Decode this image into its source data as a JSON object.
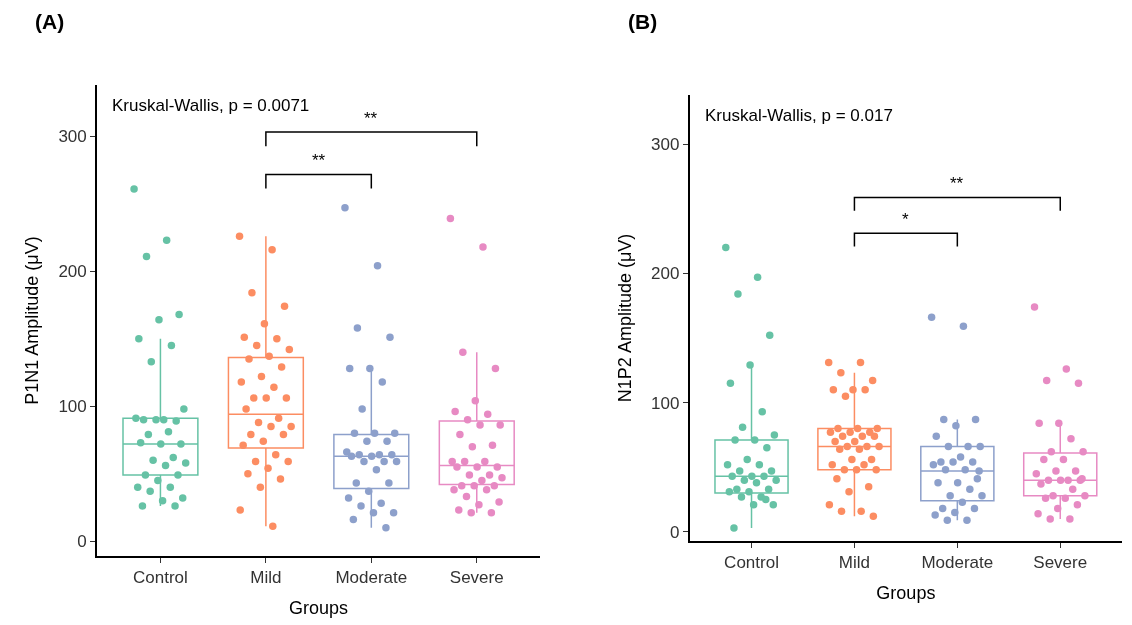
{
  "chart_data": [
    {
      "type": "box",
      "title": "(A)",
      "xlabel": "Groups",
      "ylabel": "P1N1 Amplitude (μV)",
      "categories": [
        "Control",
        "Mild",
        "Moderate",
        "Severe"
      ],
      "colors": [
        "#66c2a5",
        "#fc8d62",
        "#8da0cb",
        "#e78ac3"
      ],
      "ylim": [
        -11,
        338
      ],
      "yticks": [
        0,
        100,
        200,
        300
      ],
      "marker": "circle",
      "annotations": [
        "Kruskal-Wallis, p = 0.0071",
        "**",
        "**"
      ],
      "boxes": [
        {
          "low": 26,
          "q1": 49,
          "median": 72,
          "q3": 91,
          "high": 150
        },
        {
          "low": 11,
          "q1": 69,
          "median": 94,
          "q3": 136,
          "high": 226
        },
        {
          "low": 10,
          "q1": 39,
          "median": 63,
          "q3": 79,
          "high": 128
        },
        {
          "low": 21,
          "q1": 42,
          "median": 56,
          "q3": 89,
          "high": 140
        }
      ],
      "series": [
        {
          "type": "scatter",
          "color": "#66c2a5",
          "x": [
            "Control",
            "Control",
            "Control",
            "Control",
            "Control",
            "Control",
            "Control",
            "Control",
            "Control",
            "Control",
            "Control",
            "Control",
            "Control",
            "Control",
            "Control",
            "Control",
            "Control",
            "Control",
            "Control",
            "Control",
            "Control",
            "Control",
            "Control",
            "Control",
            "Control",
            "Control",
            "Control",
            "Control",
            "Control",
            "Control",
            "Control",
            "Control",
            "Control"
          ],
          "values": [
            261,
            223,
            211,
            168,
            164,
            150,
            145,
            133,
            98,
            90,
            90,
            89,
            90,
            91,
            81,
            79,
            72,
            72,
            73,
            62,
            60,
            58,
            56,
            49,
            49,
            45,
            40,
            40,
            37,
            32,
            30,
            26,
            26
          ]
        },
        {
          "type": "scatter",
          "color": "#fc8d62",
          "x": [
            "Mild",
            "Mild",
            "Mild",
            "Mild",
            "Mild",
            "Mild",
            "Mild",
            "Mild",
            "Mild",
            "Mild",
            "Mild",
            "Mild",
            "Mild",
            "Mild",
            "Mild",
            "Mild",
            "Mild",
            "Mild",
            "Mild",
            "Mild",
            "Mild",
            "Mild",
            "Mild",
            "Mild",
            "Mild",
            "Mild",
            "Mild",
            "Mild",
            "Mild",
            "Mild",
            "Mild",
            "Mild",
            "Mild",
            "Mild",
            "Mild",
            "Mild"
          ],
          "values": [
            226,
            216,
            184,
            174,
            161,
            151,
            150,
            145,
            142,
            137,
            135,
            129,
            122,
            118,
            114,
            106,
            106,
            106,
            98,
            91,
            88,
            85,
            85,
            79,
            79,
            74,
            71,
            64,
            59,
            59,
            54,
            50,
            46,
            40,
            23,
            11
          ]
        },
        {
          "type": "scatter",
          "color": "#8da0cb",
          "x": [
            "Moderate",
            "Moderate",
            "Moderate",
            "Moderate",
            "Moderate",
            "Moderate",
            "Moderate",
            "Moderate",
            "Moderate",
            "Moderate",
            "Moderate",
            "Moderate",
            "Moderate",
            "Moderate",
            "Moderate",
            "Moderate",
            "Moderate",
            "Moderate",
            "Moderate",
            "Moderate",
            "Moderate",
            "Moderate",
            "Moderate",
            "Moderate",
            "Moderate",
            "Moderate",
            "Moderate",
            "Moderate",
            "Moderate",
            "Moderate",
            "Moderate",
            "Moderate",
            "Moderate"
          ],
          "values": [
            247,
            204,
            158,
            151,
            128,
            128,
            118,
            98,
            80,
            80,
            80,
            74,
            74,
            66,
            64,
            64,
            64,
            63,
            63,
            59,
            59,
            59,
            53,
            43,
            43,
            37,
            32,
            28,
            26,
            21,
            21,
            16,
            10
          ]
        },
        {
          "type": "scatter",
          "color": "#e78ac3",
          "x": [
            "Severe",
            "Severe",
            "Severe",
            "Severe",
            "Severe",
            "Severe",
            "Severe",
            "Severe",
            "Severe",
            "Severe",
            "Severe",
            "Severe",
            "Severe",
            "Severe",
            "Severe",
            "Severe",
            "Severe",
            "Severe",
            "Severe",
            "Severe",
            "Severe",
            "Severe",
            "Severe",
            "Severe",
            "Severe",
            "Severe",
            "Severe",
            "Severe",
            "Severe",
            "Severe",
            "Severe",
            "Severe",
            "Severe",
            "Severe"
          ],
          "values": [
            239,
            218,
            140,
            128,
            104,
            96,
            94,
            90,
            86,
            86,
            79,
            71,
            70,
            59,
            59,
            59,
            55,
            55,
            55,
            49,
            49,
            47,
            45,
            41,
            41,
            41,
            38,
            38,
            33,
            29,
            27,
            23,
            21,
            21
          ]
        }
      ]
    },
    {
      "type": "box",
      "title": "(B)",
      "xlabel": "Groups",
      "ylabel": "N1P2 Amplitude (μV)",
      "categories": [
        "Control",
        "Mild",
        "Moderate",
        "Severe"
      ],
      "colors": [
        "#66c2a5",
        "#fc8d62",
        "#8da0cb",
        "#e78ac3"
      ],
      "ylim": [
        -7,
        338
      ],
      "yticks": [
        0,
        100,
        200,
        300
      ],
      "marker": "circle",
      "annotations": [
        "Kruskal-Wallis, p = 0.017",
        "*",
        "**"
      ],
      "boxes": [
        {
          "low": 3,
          "q1": 30,
          "median": 43,
          "q3": 71,
          "high": 129
        },
        {
          "low": 12,
          "q1": 48,
          "median": 66,
          "q3": 80,
          "high": 123
        },
        {
          "low": 9,
          "q1": 24,
          "median": 47,
          "q3": 66,
          "high": 87
        },
        {
          "low": 10,
          "q1": 28,
          "median": 40,
          "q3": 61,
          "high": 84
        }
      ],
      "series": [
        {
          "type": "scatter",
          "color": "#66c2a5",
          "x": [
            "Control",
            "Control",
            "Control",
            "Control",
            "Control",
            "Control",
            "Control",
            "Control",
            "Control",
            "Control",
            "Control",
            "Control",
            "Control",
            "Control",
            "Control",
            "Control",
            "Control",
            "Control",
            "Control",
            "Control",
            "Control",
            "Control",
            "Control",
            "Control",
            "Control",
            "Control",
            "Control",
            "Control",
            "Control",
            "Control",
            "Control",
            "Control",
            "Control"
          ],
          "values": [
            220,
            197,
            184,
            152,
            129,
            115,
            93,
            81,
            75,
            71,
            71,
            65,
            56,
            52,
            52,
            47,
            47,
            43,
            43,
            43,
            40,
            40,
            38,
            33,
            33,
            31,
            31,
            27,
            27,
            21,
            21,
            3,
            25
          ]
        },
        {
          "type": "scatter",
          "color": "#fc8d62",
          "x": [
            "Mild",
            "Mild",
            "Mild",
            "Mild",
            "Mild",
            "Mild",
            "Mild",
            "Mild",
            "Mild",
            "Mild",
            "Mild",
            "Mild",
            "Mild",
            "Mild",
            "Mild",
            "Mild",
            "Mild",
            "Mild",
            "Mild",
            "Mild",
            "Mild",
            "Mild",
            "Mild",
            "Mild",
            "Mild",
            "Mild",
            "Mild",
            "Mild",
            "Mild",
            "Mild",
            "Mild",
            "Mild",
            "Mild",
            "Mild",
            "Mild",
            "Mild",
            "Mild",
            "Mild"
          ],
          "values": [
            131,
            131,
            123,
            117,
            110,
            110,
            110,
            105,
            80,
            80,
            80,
            77,
            77,
            77,
            74,
            74,
            74,
            70,
            70,
            66,
            66,
            66,
            64,
            64,
            56,
            56,
            52,
            52,
            48,
            48,
            48,
            41,
            35,
            31,
            21,
            16,
            16,
            12
          ]
        },
        {
          "type": "scatter",
          "color": "#8da0cb",
          "x": [
            "Moderate",
            "Moderate",
            "Moderate",
            "Moderate",
            "Moderate",
            "Moderate",
            "Moderate",
            "Moderate",
            "Moderate",
            "Moderate",
            "Moderate",
            "Moderate",
            "Moderate",
            "Moderate",
            "Moderate",
            "Moderate",
            "Moderate",
            "Moderate",
            "Moderate",
            "Moderate",
            "Moderate",
            "Moderate",
            "Moderate",
            "Moderate",
            "Moderate",
            "Moderate",
            "Moderate",
            "Moderate",
            "Moderate",
            "Moderate"
          ],
          "values": [
            166,
            159,
            87,
            87,
            82,
            74,
            66,
            66,
            66,
            58,
            54,
            54,
            54,
            52,
            48,
            48,
            41,
            38,
            38,
            33,
            28,
            28,
            23,
            18,
            18,
            15,
            13,
            9,
            9,
            47
          ]
        },
        {
          "type": "scatter",
          "color": "#e78ac3",
          "x": [
            "Severe",
            "Severe",
            "Severe",
            "Severe",
            "Severe",
            "Severe",
            "Severe",
            "Severe",
            "Severe",
            "Severe",
            "Severe",
            "Severe",
            "Severe",
            "Severe",
            "Severe",
            "Severe",
            "Severe",
            "Severe",
            "Severe",
            "Severe",
            "Severe",
            "Severe",
            "Severe",
            "Severe",
            "Severe",
            "Severe",
            "Severe",
            "Severe",
            "Severe",
            "Severe"
          ],
          "values": [
            174,
            126,
            117,
            115,
            84,
            84,
            72,
            62,
            62,
            56,
            56,
            47,
            47,
            45,
            40,
            40,
            40,
            40,
            37,
            33,
            28,
            28,
            26,
            26,
            21,
            18,
            14,
            10,
            10,
            41
          ]
        }
      ]
    }
  ]
}
